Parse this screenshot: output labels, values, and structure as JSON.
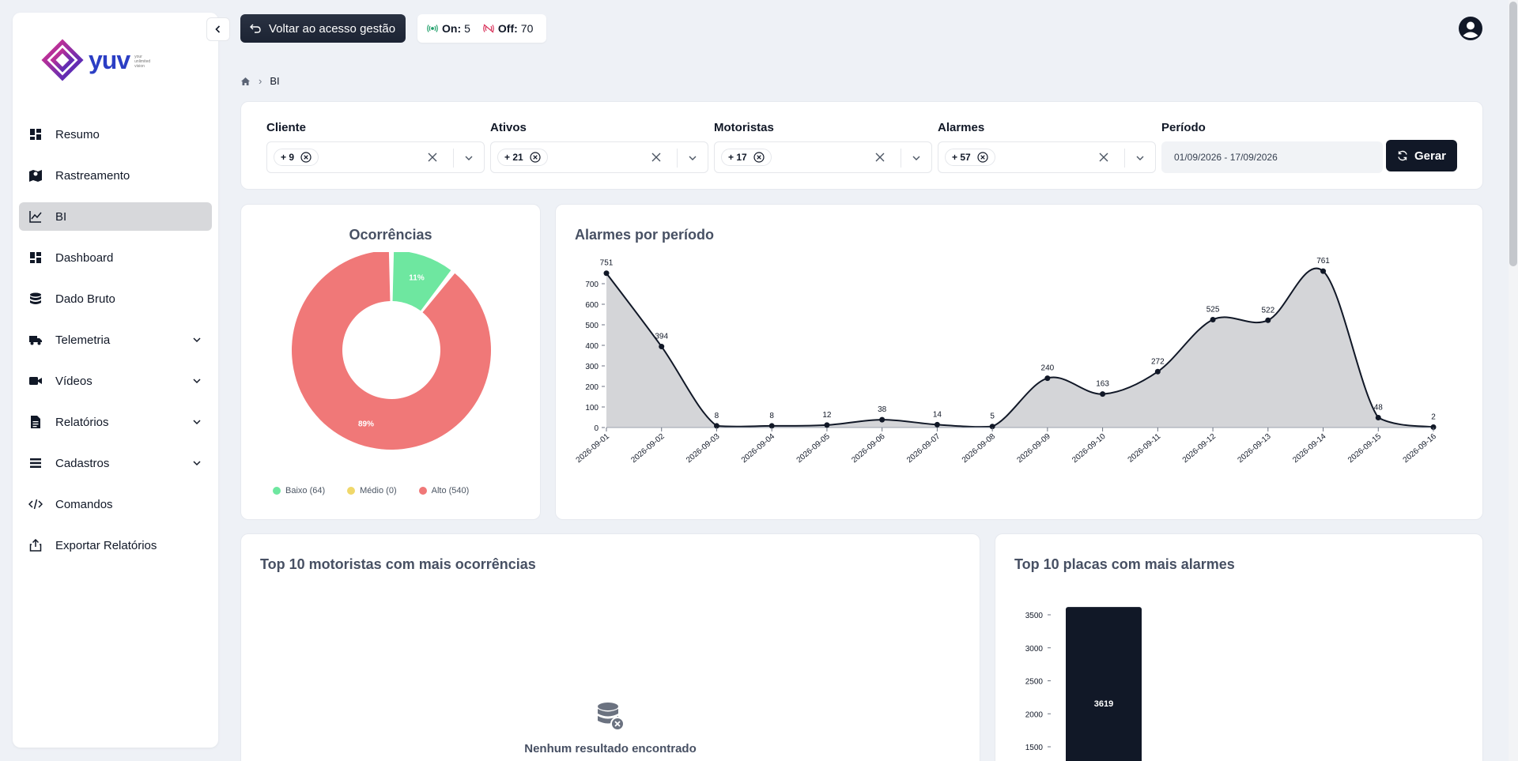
{
  "brand": {
    "name": "yuv",
    "tagline": [
      "your",
      "unlimited",
      "vision"
    ]
  },
  "sidebar": {
    "items": [
      {
        "label": "Resumo",
        "icon": "dashboard-grid-icon",
        "active": false,
        "expandable": false
      },
      {
        "label": "Rastreamento",
        "icon": "map-pin-icon",
        "active": false,
        "expandable": false
      },
      {
        "label": "BI",
        "icon": "line-chart-icon",
        "active": true,
        "expandable": false
      },
      {
        "label": "Dashboard",
        "icon": "dashboard-grid-icon",
        "active": false,
        "expandable": false
      },
      {
        "label": "Dado Bruto",
        "icon": "database-icon",
        "active": false,
        "expandable": false
      },
      {
        "label": "Telemetria",
        "icon": "truck-icon",
        "active": false,
        "expandable": true
      },
      {
        "label": "Vídeos",
        "icon": "video-icon",
        "active": false,
        "expandable": true
      },
      {
        "label": "Relatórios",
        "icon": "document-icon",
        "active": false,
        "expandable": true
      },
      {
        "label": "Cadastros",
        "icon": "list-icon",
        "active": false,
        "expandable": true
      },
      {
        "label": "Comandos",
        "icon": "code-icon",
        "active": false,
        "expandable": false
      },
      {
        "label": "Exportar Relatórios",
        "icon": "export-icon",
        "active": false,
        "expandable": false
      }
    ]
  },
  "topbar": {
    "back_label": "Voltar ao acesso gestão",
    "on_label": "On:",
    "on_count": "5",
    "off_label": "Off:",
    "off_count": "70"
  },
  "breadcrumb": {
    "current": "BI"
  },
  "filters": {
    "cliente": {
      "label": "Cliente",
      "chip": "+ 9"
    },
    "ativos": {
      "label": "Ativos",
      "chip": "+ 21"
    },
    "motoristas": {
      "label": "Motoristas",
      "chip": "+ 17"
    },
    "alarmes": {
      "label": "Alarmes",
      "chip": "+ 57"
    },
    "periodo": {
      "label": "Período",
      "value": "01/09/2026 - 17/09/2026"
    },
    "generate_label": "Gerar"
  },
  "occurrences": {
    "title": "Ocorrências",
    "legend": [
      {
        "label": "Baixo (64)",
        "color": "#6ee7a0"
      },
      {
        "label": "Médio (0)",
        "color": "#f0d86a"
      },
      {
        "label": "Alto (540)",
        "color": "#f07878"
      }
    ]
  },
  "alarms_period": {
    "title": "Alarmes por período"
  },
  "top_drivers": {
    "title": "Top 10 motoristas com mais ocorrências",
    "empty_message": "Nenhum resultado encontrado"
  },
  "top_plates": {
    "title": "Top 10 placas com mais alarmes"
  },
  "chart_data": [
    {
      "type": "pie",
      "title": "Ocorrências",
      "categories": [
        "Baixo",
        "Médio",
        "Alto"
      ],
      "values": [
        64,
        0,
        540
      ],
      "labels": [
        "11%",
        "0%",
        "89%"
      ],
      "colors": [
        "#6ee7a0",
        "#f0d86a",
        "#f07878"
      ],
      "legend": "bottom"
    },
    {
      "type": "area",
      "title": "Alarmes por período",
      "x": [
        "2026-09-01",
        "2026-09-02",
        "2026-09-03",
        "2026-09-04",
        "2026-09-05",
        "2026-09-06",
        "2026-09-07",
        "2026-09-08",
        "2026-09-09",
        "2026-09-10",
        "2026-09-11",
        "2026-09-12",
        "2026-09-13",
        "2026-09-14",
        "2026-09-15",
        "2026-09-16"
      ],
      "values": [
        751,
        394,
        8,
        8,
        12,
        38,
        14,
        5,
        240,
        163,
        272,
        525,
        522,
        761,
        48,
        2
      ],
      "yticks": [
        0,
        100,
        200,
        300,
        400,
        500,
        600,
        700
      ],
      "ylim": [
        0,
        800
      ],
      "colors": {
        "fill": "#d4d5d8",
        "line": "#111827"
      }
    },
    {
      "type": "bar",
      "title": "Top 10 placas com mais alarmes",
      "values": [
        3619
      ],
      "yticks": [
        1500,
        2000,
        2500,
        3000,
        3500
      ],
      "colors": {
        "bar": "#111827"
      }
    }
  ]
}
